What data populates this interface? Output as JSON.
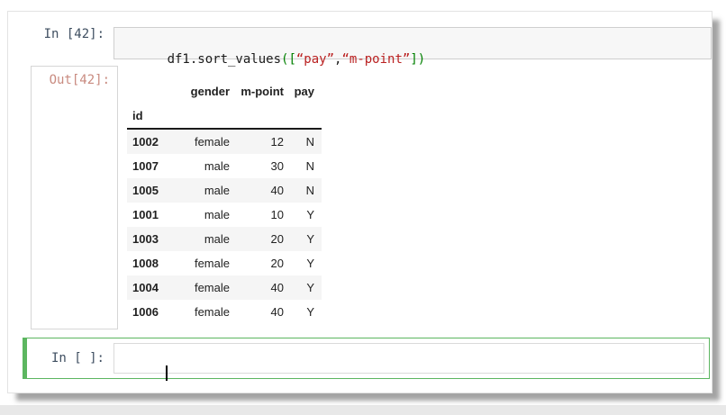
{
  "notebook": {
    "input_cell": {
      "prompt": "In [42]:",
      "code_segments": [
        {
          "text": "df1.sort_values",
          "type": "name"
        },
        {
          "text": "([",
          "type": "bracket"
        },
        {
          "text": "“pay”",
          "type": "string"
        },
        {
          "text": ",",
          "type": "punct"
        },
        {
          "text": "“m-point”",
          "type": "string"
        },
        {
          "text": "])",
          "type": "bracket"
        }
      ]
    },
    "output_cell": {
      "prompt": "Out[42]:",
      "table": {
        "index_name": "id",
        "columns": [
          "gender",
          "m-point",
          "pay"
        ],
        "rows": [
          [
            "1002",
            "female",
            "12",
            "N"
          ],
          [
            "1007",
            "male",
            "30",
            "N"
          ],
          [
            "1005",
            "male",
            "40",
            "N"
          ],
          [
            "1001",
            "male",
            "10",
            "Y"
          ],
          [
            "1003",
            "male",
            "20",
            "Y"
          ],
          [
            "1008",
            "female",
            "20",
            "Y"
          ],
          [
            "1004",
            "female",
            "40",
            "Y"
          ],
          [
            "1006",
            "female",
            "40",
            "Y"
          ]
        ]
      }
    },
    "empty_cell": {
      "prompt": "In [ ]:",
      "value": ""
    }
  },
  "colors": {
    "in_prompt": "#3e4e60",
    "out_prompt": "#c98b80",
    "selected_cell_border": "#5cb660",
    "code_string": "#ba2121",
    "code_bracket": "#008000",
    "code_plain": "#1a1a1a",
    "stripe": "#f5f5f5"
  }
}
